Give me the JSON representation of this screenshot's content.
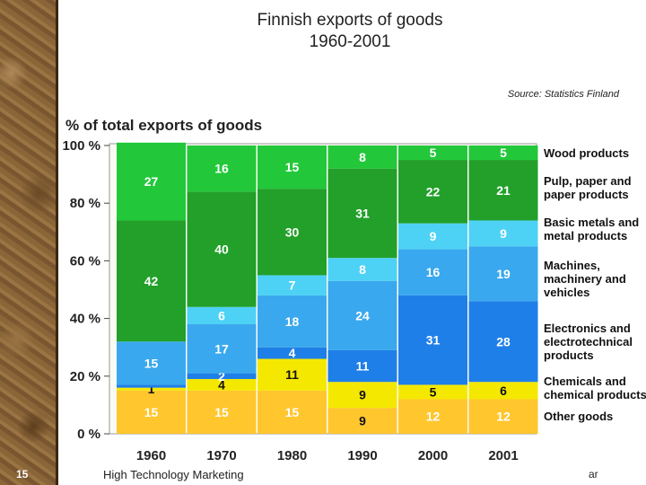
{
  "slide": {
    "title_line1": "Finnish exports of goods",
    "title_line2": "1960-2001",
    "source": "Source: Statistics Finland",
    "page_number": "15",
    "footer": "High Technology Marketing",
    "footer_right": "ar"
  },
  "chart_data": {
    "type": "bar",
    "stacked": true,
    "ylabel": "% of total exports of goods",
    "ylim": [
      0,
      100
    ],
    "yticks": [
      "0 %",
      "20 %",
      "40 %",
      "60 %",
      "80 %",
      "100 %"
    ],
    "categories": [
      "1960",
      "1970",
      "1980",
      "1990",
      "2000",
      "2001"
    ],
    "series": [
      {
        "name": "Other goods",
        "color": "#ffc62e",
        "values": [
          15,
          15,
          15,
          9,
          12,
          12
        ],
        "labels": [
          "15",
          "15",
          "15",
          "9",
          "12",
          "12"
        ]
      },
      {
        "name": "Chemicals and chemical products",
        "color": "#f5e800",
        "values": [
          1,
          4,
          11,
          9,
          5,
          6
        ],
        "labels": [
          "1",
          "4",
          "11",
          "9",
          "5",
          "6"
        ]
      },
      {
        "name": "Electronics and electrotechnical products",
        "color": "#1f7fe8",
        "values": [
          1,
          2,
          4,
          11,
          31,
          28
        ],
        "labels": [
          "",
          "2",
          "4",
          "11",
          "31",
          "28"
        ]
      },
      {
        "name": "Machines, machinery and vehicles",
        "color": "#3aa8ee",
        "values": [
          15,
          17,
          18,
          24,
          16,
          19
        ],
        "labels": [
          "15",
          "17",
          "18",
          "24",
          "16",
          "19"
        ]
      },
      {
        "name": "Basic metals and metal products",
        "color": "#4dd2f5",
        "values": [
          0,
          6,
          7,
          8,
          9,
          9
        ],
        "labels": [
          "",
          "6",
          "7",
          "8",
          "9",
          "9"
        ]
      },
      {
        "name": "Pulp, paper and paper products",
        "color": "#22a02a",
        "values": [
          42,
          40,
          30,
          31,
          22,
          21
        ],
        "labels": [
          "42",
          "40",
          "30",
          "31",
          "22",
          "21"
        ]
      },
      {
        "name": "Wood products",
        "color": "#22c83a",
        "values": [
          27,
          16,
          15,
          8,
          5,
          5
        ],
        "labels": [
          "27",
          "16",
          "15",
          "8",
          "5",
          "5"
        ]
      }
    ],
    "legend": [
      "Wood products",
      "Pulp, paper and\npaper products",
      "Basic metals and\nmetal products",
      "Machines,\nmachinery and\nvehicles",
      "Electronics and\nelectrotechnical\nproducts",
      "Chemicals and\nchemical products",
      "Other goods"
    ],
    "legend_position": "right",
    "plot_background": "#fbfbf5"
  }
}
